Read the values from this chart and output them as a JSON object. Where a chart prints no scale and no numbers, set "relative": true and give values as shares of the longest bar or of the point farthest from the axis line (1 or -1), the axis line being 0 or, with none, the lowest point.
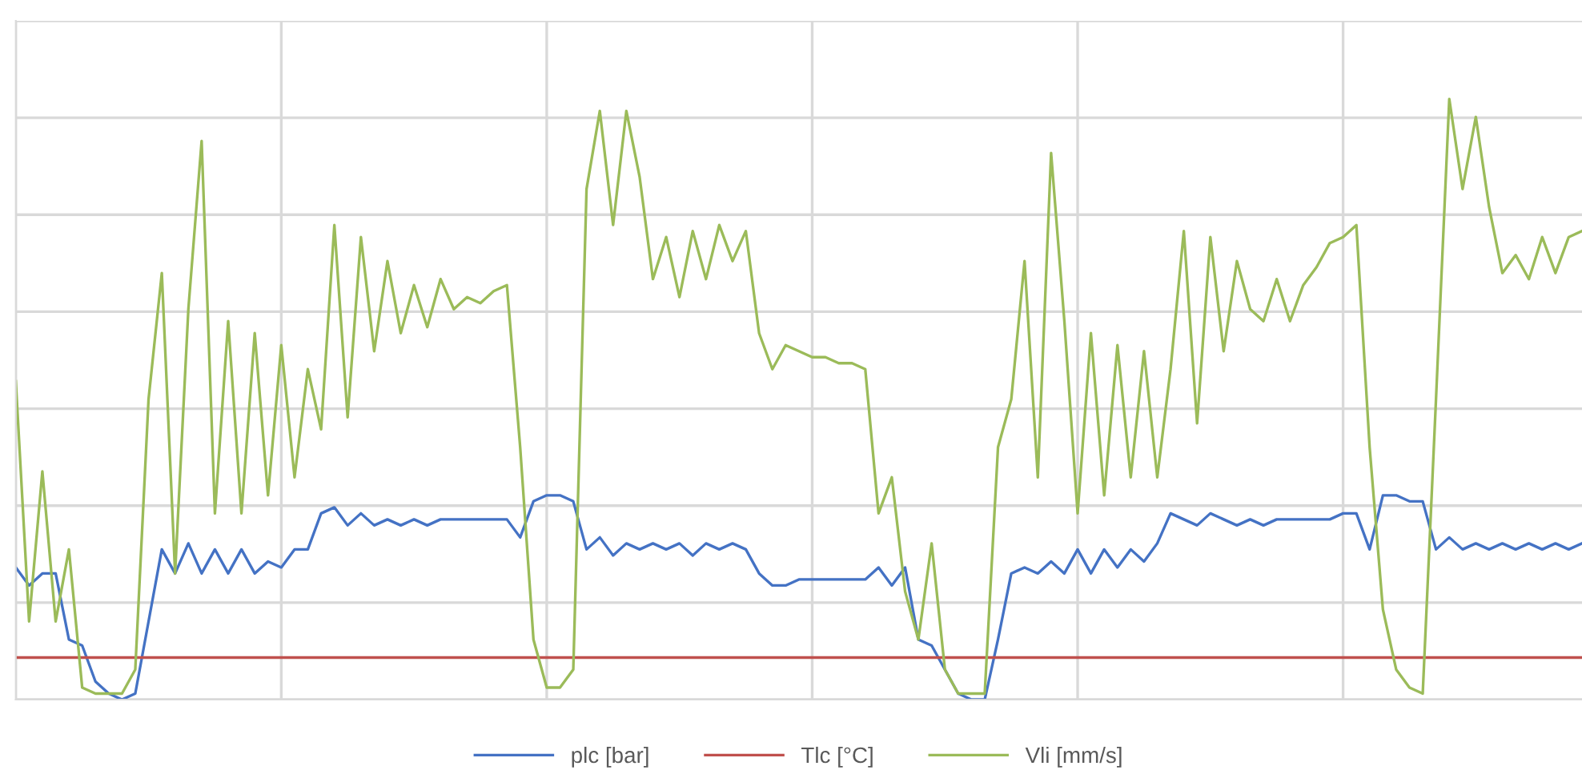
{
  "chart_data": {
    "type": "line",
    "relative": true,
    "grid": true,
    "legend": "bottom",
    "categories": [
      null,
      null,
      null,
      null,
      null,
      null,
      null,
      null,
      null,
      null,
      null,
      null,
      null,
      null,
      null,
      null,
      null,
      null,
      null,
      null,
      null,
      null,
      null,
      null,
      null,
      null,
      null,
      null,
      null,
      null,
      null,
      null,
      null,
      null,
      null,
      null,
      null,
      null,
      null,
      null,
      null,
      null,
      null,
      null,
      null,
      null,
      null,
      null,
      null,
      null,
      null,
      null,
      null,
      null,
      null,
      null,
      null,
      null,
      null,
      null,
      null,
      null,
      null,
      null,
      null,
      null,
      null,
      null,
      null,
      null,
      null,
      null,
      null,
      null,
      null,
      null,
      null,
      null,
      null,
      null,
      null,
      null,
      null,
      null,
      null,
      null,
      null,
      null,
      null,
      null,
      null,
      null,
      null,
      null,
      null,
      null,
      null,
      null,
      null,
      null,
      null,
      null,
      null,
      null,
      null,
      null,
      null,
      null,
      null,
      null,
      null,
      null,
      null,
      null,
      null,
      null,
      null,
      null,
      null
    ],
    "series": [
      {
        "name": "plc [bar]",
        "color": "#4472c4",
        "values": [
          0.22,
          0.19,
          0.21,
          0.21,
          0.1,
          0.09,
          0.03,
          0.01,
          0.0,
          0.01,
          0.13,
          0.25,
          0.21,
          0.26,
          0.21,
          0.25,
          0.21,
          0.25,
          0.21,
          0.23,
          0.22,
          0.25,
          0.25,
          0.31,
          0.32,
          0.29,
          0.31,
          0.29,
          0.3,
          0.29,
          0.3,
          0.29,
          0.3,
          0.3,
          0.3,
          0.3,
          0.3,
          0.3,
          0.27,
          0.33,
          0.34,
          0.34,
          0.33,
          0.25,
          0.27,
          0.24,
          0.26,
          0.25,
          0.26,
          0.25,
          0.26,
          0.24,
          0.26,
          0.25,
          0.26,
          0.25,
          0.21,
          0.19,
          0.19,
          0.2,
          0.2,
          0.2,
          0.2,
          0.2,
          0.2,
          0.22,
          0.19,
          0.22,
          0.1,
          0.09,
          0.05,
          0.01,
          0.0,
          0.0,
          0.1,
          0.21,
          0.22,
          0.21,
          0.23,
          0.21,
          0.25,
          0.21,
          0.25,
          0.22,
          0.25,
          0.23,
          0.26,
          0.31,
          0.3,
          0.29,
          0.31,
          0.3,
          0.29,
          0.3,
          0.29,
          0.3,
          0.3,
          0.3,
          0.3,
          0.3,
          0.31,
          0.31,
          0.25,
          0.34,
          0.34,
          0.33,
          0.33,
          0.25,
          0.27,
          0.25,
          0.26,
          0.25,
          0.26,
          0.25,
          0.26,
          0.25,
          0.26,
          0.25,
          0.26
        ]
      },
      {
        "name": "Tlc [°C]",
        "color": "#c0504d",
        "values": [
          0.07,
          0.07,
          0.07,
          0.07,
          0.07,
          0.07,
          0.07,
          0.07,
          0.07,
          0.07,
          0.07,
          0.07,
          0.07,
          0.07,
          0.07,
          0.07,
          0.07,
          0.07,
          0.07,
          0.07,
          0.07,
          0.07,
          0.07,
          0.07,
          0.07,
          0.07,
          0.07,
          0.07,
          0.07,
          0.07,
          0.07,
          0.07,
          0.07,
          0.07,
          0.07,
          0.07,
          0.07,
          0.07,
          0.07,
          0.07,
          0.07,
          0.07,
          0.07,
          0.07,
          0.07,
          0.07,
          0.07,
          0.07,
          0.07,
          0.07,
          0.07,
          0.07,
          0.07,
          0.07,
          0.07,
          0.07,
          0.07,
          0.07,
          0.07,
          0.07,
          0.07,
          0.07,
          0.07,
          0.07,
          0.07,
          0.07,
          0.07,
          0.07,
          0.07,
          0.07,
          0.07,
          0.07,
          0.07,
          0.07,
          0.07,
          0.07,
          0.07,
          0.07,
          0.07,
          0.07,
          0.07,
          0.07,
          0.07,
          0.07,
          0.07,
          0.07,
          0.07,
          0.07,
          0.07,
          0.07,
          0.07,
          0.07,
          0.07,
          0.07,
          0.07,
          0.07,
          0.07,
          0.07,
          0.07,
          0.07,
          0.07,
          0.07,
          0.07,
          0.07,
          0.07,
          0.07,
          0.07,
          0.07,
          0.07,
          0.07,
          0.07,
          0.07,
          0.07,
          0.07,
          0.07,
          0.07,
          0.07,
          0.07,
          0.07
        ]
      },
      {
        "name": "Vli [mm/s]",
        "color": "#9bbb59",
        "values": [
          0.53,
          0.13,
          0.38,
          0.13,
          0.25,
          0.02,
          0.01,
          0.01,
          0.01,
          0.05,
          0.5,
          0.71,
          0.21,
          0.65,
          0.93,
          0.31,
          0.63,
          0.31,
          0.61,
          0.34,
          0.59,
          0.37,
          0.55,
          0.45,
          0.79,
          0.47,
          0.77,
          0.58,
          0.73,
          0.61,
          0.69,
          0.62,
          0.7,
          0.65,
          0.67,
          0.66,
          0.68,
          0.69,
          0.42,
          0.1,
          0.02,
          0.02,
          0.05,
          0.85,
          0.98,
          0.79,
          0.98,
          0.87,
          0.7,
          0.77,
          0.67,
          0.78,
          0.7,
          0.79,
          0.73,
          0.78,
          0.61,
          0.55,
          0.59,
          0.58,
          0.57,
          0.57,
          0.56,
          0.56,
          0.55,
          0.31,
          0.37,
          0.18,
          0.1,
          0.26,
          0.05,
          0.01,
          0.01,
          0.01,
          0.42,
          0.5,
          0.73,
          0.37,
          0.91,
          0.63,
          0.31,
          0.61,
          0.34,
          0.59,
          0.37,
          0.58,
          0.37,
          0.55,
          0.78,
          0.46,
          0.77,
          0.58,
          0.73,
          0.65,
          0.63,
          0.7,
          0.63,
          0.69,
          0.72,
          0.76,
          0.77,
          0.79,
          0.42,
          0.15,
          0.05,
          0.02,
          0.01,
          0.5,
          1,
          0.85,
          0.97,
          0.82,
          0.71,
          0.74,
          0.7,
          0.77,
          0.71,
          0.77,
          0.78
        ]
      }
    ]
  }
}
